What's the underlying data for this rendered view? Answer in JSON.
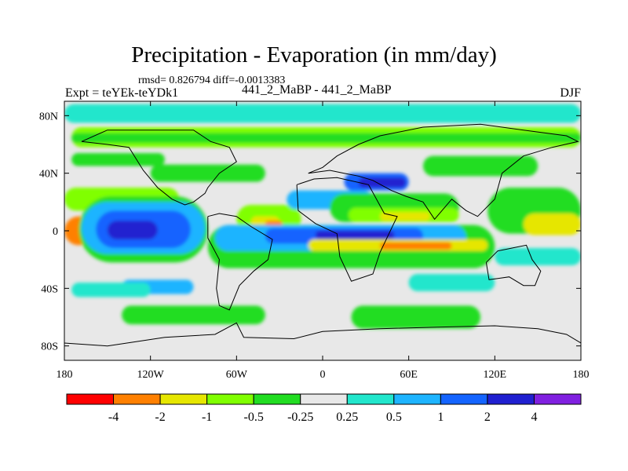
{
  "chart_data": {
    "type": "heatmap",
    "title": "Precipitation - Evaporation (in mm/day)",
    "stats_line": "rmsd= 0.826794 diff=-0.0013383",
    "left_subtitle": "Expt = teYEk-teYDk1",
    "center_subtitle": "441_2_MaBP - 441_2_MaBP",
    "right_subtitle": "DJF",
    "x_range": [
      -180,
      180
    ],
    "y_range": [
      -90,
      90
    ],
    "x_ticks": [
      {
        "value": -180,
        "label": "180"
      },
      {
        "value": -120,
        "label": "120W"
      },
      {
        "value": -60,
        "label": "60W"
      },
      {
        "value": 0,
        "label": "0"
      },
      {
        "value": 60,
        "label": "60E"
      },
      {
        "value": 120,
        "label": "120E"
      },
      {
        "value": 180,
        "label": "180"
      }
    ],
    "y_ticks": [
      {
        "value": 80,
        "label": "80N"
      },
      {
        "value": 40,
        "label": "40N"
      },
      {
        "value": 0,
        "label": "0"
      },
      {
        "value": -40,
        "label": "40S"
      },
      {
        "value": -80,
        "label": "80S"
      }
    ],
    "colorbar": {
      "boundaries": [
        "-4",
        "-2",
        "-1",
        "-0.5",
        "-0.25",
        "0.25",
        "0.5",
        "1",
        "2",
        "4"
      ],
      "colors": [
        "#ff0000",
        "#ff8000",
        "#e6e600",
        "#80ff00",
        "#22dd22",
        "#e8e8e8",
        "#22e6cc",
        "#1eb4ff",
        "#1464ff",
        "#2020d0",
        "#8020e0"
      ]
    },
    "fields": [
      {
        "bin": 6,
        "lon": [
          -180,
          180
        ],
        "lat": [
          75,
          88
        ]
      },
      {
        "bin": 3,
        "lon": [
          -175,
          180
        ],
        "lat": [
          58,
          72
        ]
      },
      {
        "bin": 4,
        "lon": [
          -175,
          180
        ],
        "lat": [
          61,
          68
        ]
      },
      {
        "bin": 4,
        "lon": [
          -175,
          -110
        ],
        "lat": [
          45,
          54
        ]
      },
      {
        "bin": 4,
        "lon": [
          70,
          150
        ],
        "lat": [
          38,
          52
        ]
      },
      {
        "bin": 4,
        "lon": [
          -120,
          -40
        ],
        "lat": [
          34,
          46
        ]
      },
      {
        "bin": 3,
        "lon": [
          -180,
          -100
        ],
        "lat": [
          14,
          30
        ]
      },
      {
        "bin": 1,
        "lon": [
          -180,
          -160
        ],
        "lat": [
          -10,
          10
        ]
      },
      {
        "bin": 4,
        "lon": [
          -170,
          -80
        ],
        "lat": [
          -22,
          24
        ]
      },
      {
        "bin": 7,
        "lon": [
          -168,
          -82
        ],
        "lat": [
          -16,
          20
        ]
      },
      {
        "bin": 8,
        "lon": [
          -158,
          -92
        ],
        "lat": [
          -12,
          14
        ]
      },
      {
        "bin": 9,
        "lon": [
          -150,
          -115
        ],
        "lat": [
          -6,
          7
        ]
      },
      {
        "bin": 3,
        "lon": [
          -60,
          -15
        ],
        "lat": [
          -2,
          18
        ]
      },
      {
        "bin": 2,
        "lon": [
          -50,
          -30
        ],
        "lat": [
          2,
          10
        ]
      },
      {
        "bin": 1,
        "lon": [
          -40,
          -28
        ],
        "lat": [
          3,
          7
        ]
      },
      {
        "bin": 7,
        "lon": [
          -25,
          35
        ],
        "lat": [
          15,
          28
        ]
      },
      {
        "bin": 8,
        "lon": [
          15,
          60
        ],
        "lat": [
          28,
          40
        ]
      },
      {
        "bin": 9,
        "lon": [
          25,
          58
        ],
        "lat": [
          30,
          37
        ]
      },
      {
        "bin": 4,
        "lon": [
          5,
          95
        ],
        "lat": [
          6,
          26
        ]
      },
      {
        "bin": 3,
        "lon": [
          18,
          95
        ],
        "lat": [
          6,
          16
        ]
      },
      {
        "bin": 2,
        "lon": [
          40,
          75
        ],
        "lat": [
          7,
          13
        ]
      },
      {
        "bin": 4,
        "lon": [
          -80,
          120
        ],
        "lat": [
          -26,
          4
        ]
      },
      {
        "bin": 7,
        "lon": [
          -75,
          100
        ],
        "lat": [
          -14,
          4
        ]
      },
      {
        "bin": 8,
        "lon": [
          -40,
          70
        ],
        "lat": [
          -9,
          2
        ]
      },
      {
        "bin": 9,
        "lon": [
          -5,
          50
        ],
        "lat": [
          -6,
          0
        ]
      },
      {
        "bin": 2,
        "lon": [
          -10,
          115
        ],
        "lat": [
          -14,
          -6
        ]
      },
      {
        "bin": 1,
        "lon": [
          40,
          90
        ],
        "lat": [
          -13,
          -8
        ]
      },
      {
        "bin": 7,
        "lon": [
          -140,
          -90
        ],
        "lat": [
          -44,
          -34
        ]
      },
      {
        "bin": 4,
        "lon": [
          115,
          180
        ],
        "lat": [
          -2,
          30
        ]
      },
      {
        "bin": 2,
        "lon": [
          140,
          180
        ],
        "lat": [
          -3,
          12
        ]
      },
      {
        "bin": 4,
        "lon": [
          -140,
          -40
        ],
        "lat": [
          -65,
          -52
        ]
      },
      {
        "bin": 4,
        "lon": [
          20,
          110
        ],
        "lat": [
          -68,
          -52
        ]
      },
      {
        "bin": 6,
        "lon": [
          -175,
          -120
        ],
        "lat": [
          -46,
          -36
        ]
      },
      {
        "bin": 6,
        "lon": [
          60,
          120
        ],
        "lat": [
          -42,
          -30
        ]
      },
      {
        "bin": 6,
        "lon": [
          120,
          180
        ],
        "lat": [
          -24,
          -12
        ]
      }
    ],
    "continent_outlines": [
      [
        [
          -168,
          62
        ],
        [
          -150,
          70
        ],
        [
          -120,
          70
        ],
        [
          -90,
          70
        ],
        [
          -78,
          62
        ],
        [
          -65,
          58
        ],
        [
          -60,
          48
        ],
        [
          -72,
          40
        ],
        [
          -80,
          30
        ],
        [
          -82,
          26
        ],
        [
          -90,
          20
        ],
        [
          -96,
          18
        ],
        [
          -105,
          22
        ],
        [
          -115,
          30
        ],
        [
          -125,
          42
        ],
        [
          -135,
          58
        ],
        [
          -150,
          60
        ],
        [
          -168,
          62
        ]
      ],
      [
        [
          -80,
          10
        ],
        [
          -72,
          12
        ],
        [
          -60,
          10
        ],
        [
          -50,
          3
        ],
        [
          -35,
          -6
        ],
        [
          -38,
          -20
        ],
        [
          -48,
          -28
        ],
        [
          -58,
          -38
        ],
        [
          -65,
          -55
        ],
        [
          -72,
          -52
        ],
        [
          -74,
          -40
        ],
        [
          -72,
          -20
        ],
        [
          -80,
          -5
        ],
        [
          -80,
          10
        ]
      ],
      [
        [
          -18,
          32
        ],
        [
          -6,
          36
        ],
        [
          10,
          37
        ],
        [
          32,
          32
        ],
        [
          43,
          12
        ],
        [
          52,
          10
        ],
        [
          40,
          -15
        ],
        [
          35,
          -30
        ],
        [
          20,
          -35
        ],
        [
          12,
          -18
        ],
        [
          10,
          -2
        ],
        [
          -5,
          5
        ],
        [
          -17,
          14
        ],
        [
          -18,
          32
        ]
      ],
      [
        [
          -10,
          40
        ],
        [
          0,
          44
        ],
        [
          10,
          52
        ],
        [
          25,
          60
        ],
        [
          40,
          66
        ],
        [
          70,
          72
        ],
        [
          110,
          74
        ],
        [
          140,
          70
        ],
        [
          170,
          66
        ],
        [
          178,
          62
        ],
        [
          160,
          58
        ],
        [
          140,
          52
        ],
        [
          125,
          40
        ],
        [
          120,
          22
        ],
        [
          108,
          10
        ],
        [
          100,
          14
        ],
        [
          90,
          22
        ],
        [
          78,
          8
        ],
        [
          70,
          20
        ],
        [
          58,
          24
        ],
        [
          48,
          28
        ],
        [
          35,
          35
        ],
        [
          25,
          38
        ],
        [
          15,
          40
        ],
        [
          5,
          42
        ],
        [
          -10,
          40
        ]
      ],
      [
        [
          114,
          -22
        ],
        [
          122,
          -14
        ],
        [
          132,
          -12
        ],
        [
          142,
          -10
        ],
        [
          146,
          -20
        ],
        [
          152,
          -28
        ],
        [
          148,
          -38
        ],
        [
          140,
          -38
        ],
        [
          130,
          -32
        ],
        [
          116,
          -34
        ],
        [
          114,
          -22
        ]
      ],
      [
        [
          -180,
          -78
        ],
        [
          -150,
          -80
        ],
        [
          -110,
          -74
        ],
        [
          -75,
          -72
        ],
        [
          -60,
          -64
        ],
        [
          -55,
          -74
        ],
        [
          -20,
          -75
        ],
        [
          0,
          -70
        ],
        [
          40,
          -68
        ],
        [
          80,
          -67
        ],
        [
          120,
          -66
        ],
        [
          150,
          -68
        ],
        [
          170,
          -72
        ],
        [
          180,
          -78
        ]
      ]
    ]
  }
}
